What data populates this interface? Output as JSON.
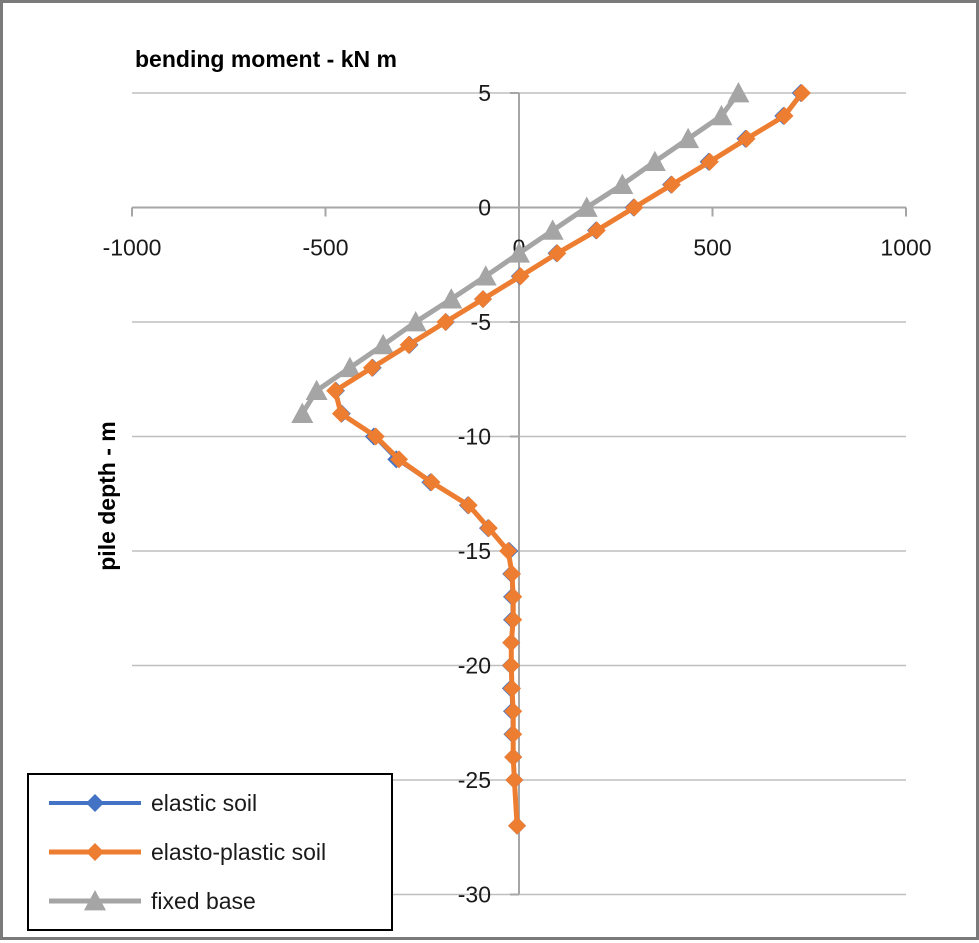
{
  "chart_data": {
    "type": "scatter",
    "xlabel": "bending moment - kN m",
    "ylabel": "pile depth - m",
    "xlim": [
      -1000,
      1000
    ],
    "ylim": [
      -30,
      5
    ],
    "xticks": [
      -1000,
      -500,
      0,
      500,
      1000
    ],
    "yticks": [
      5,
      0,
      -5,
      -10,
      -15,
      -20,
      -25,
      -30
    ],
    "grid": "horizontal",
    "legend_position": "bottom-left",
    "series": [
      {
        "name": "elastic soil",
        "color": "#4472C4",
        "marker": "diamond",
        "x": [
          728,
          683,
          585,
          490,
          393,
          296,
          199,
          97,
          2,
          -93,
          -189,
          -283,
          -378,
          -473,
          -458,
          -375,
          -317,
          -229,
          -132,
          -80,
          -25,
          -20,
          -18,
          -18,
          -20,
          -21,
          -21,
          -18,
          -17,
          -15,
          -12,
          -5
        ],
        "y": [
          5,
          4,
          3,
          2,
          1,
          0,
          -1,
          -2,
          -3,
          -4,
          -5,
          -6,
          -7,
          -8,
          -9,
          -10,
          -11,
          -12,
          -13,
          -14,
          -15,
          -16,
          -17,
          -18,
          -19,
          -20,
          -21,
          -22,
          -23,
          -24,
          -25,
          -27
        ]
      },
      {
        "name": "elasto-plastic soil",
        "color": "#ED7D31",
        "marker": "diamond",
        "x": [
          731,
          686,
          588,
          493,
          395,
          298,
          201,
          99,
          4,
          -93,
          -190,
          -285,
          -380,
          -475,
          -460,
          -370,
          -310,
          -226,
          -130,
          -78,
          -28,
          -18,
          -15,
          -15,
          -20,
          -20,
          -18,
          -15,
          -15,
          -15,
          -12,
          -5
        ],
        "y": [
          5,
          4,
          3,
          2,
          1,
          0,
          -1,
          -2,
          -3,
          -4,
          -5,
          -6,
          -7,
          -8,
          -9,
          -10,
          -11,
          -12,
          -13,
          -14,
          -15,
          -16,
          -17,
          -18,
          -19,
          -20,
          -21,
          -22,
          -23,
          -24,
          -25,
          -27
        ]
      },
      {
        "name": "fixed base",
        "color": "#A5A5A5",
        "marker": "triangle",
        "x": [
          567,
          523,
          437,
          351,
          267,
          175,
          87,
          0,
          -86,
          -175,
          -267,
          -351,
          -437,
          -523,
          -560
        ],
        "y": [
          5,
          4,
          3,
          2,
          1,
          0,
          -1,
          -2,
          -3,
          -4,
          -5,
          -6,
          -7,
          -8,
          -9
        ]
      }
    ]
  }
}
